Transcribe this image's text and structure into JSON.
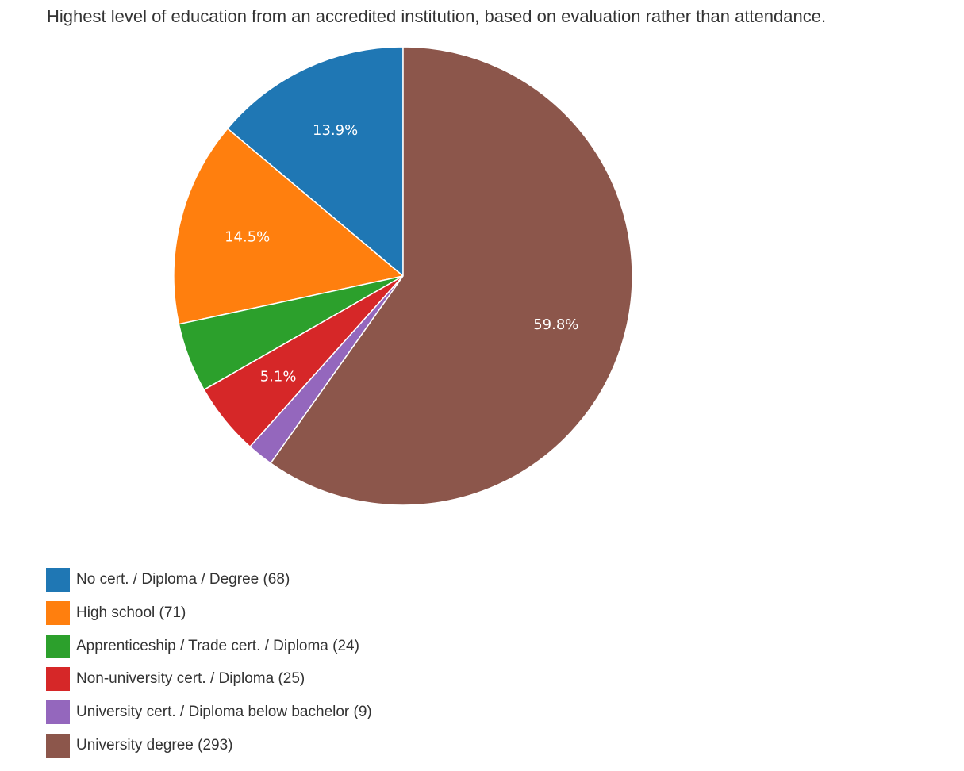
{
  "chart_data": {
    "type": "pie",
    "title": "Highest level of education from an accredited institution, based on evaluation rather than attendance.",
    "series": [
      {
        "name": "No cert. / Diploma / Degree",
        "value": 68,
        "legend_label": "No cert. / Diploma / Degree (68)",
        "slice_label": "13.9%",
        "color": "#1f77b4"
      },
      {
        "name": "High school",
        "value": 71,
        "legend_label": "High school (71)",
        "slice_label": "14.5%",
        "color": "#ff7f0e"
      },
      {
        "name": "Apprenticeship / Trade cert. / Diploma",
        "value": 24,
        "legend_label": "Apprenticeship / Trade cert. / Diploma (24)",
        "slice_label": "",
        "color": "#2ca02c"
      },
      {
        "name": "Non-university cert. / Diploma",
        "value": 25,
        "legend_label": "Non-university cert. / Diploma (25)",
        "slice_label": "5.1%",
        "color": "#d62728"
      },
      {
        "name": "University cert. / Diploma below bachelor",
        "value": 9,
        "legend_label": "University cert. / Diploma below bachelor (9)",
        "slice_label": "",
        "color": "#9467bd"
      },
      {
        "name": "University degree",
        "value": 293,
        "legend_label": "University degree (293)",
        "slice_label": "59.8%",
        "color": "#8c564b"
      }
    ],
    "legend_position": "bottom-left",
    "direction": "counterclockwise"
  }
}
